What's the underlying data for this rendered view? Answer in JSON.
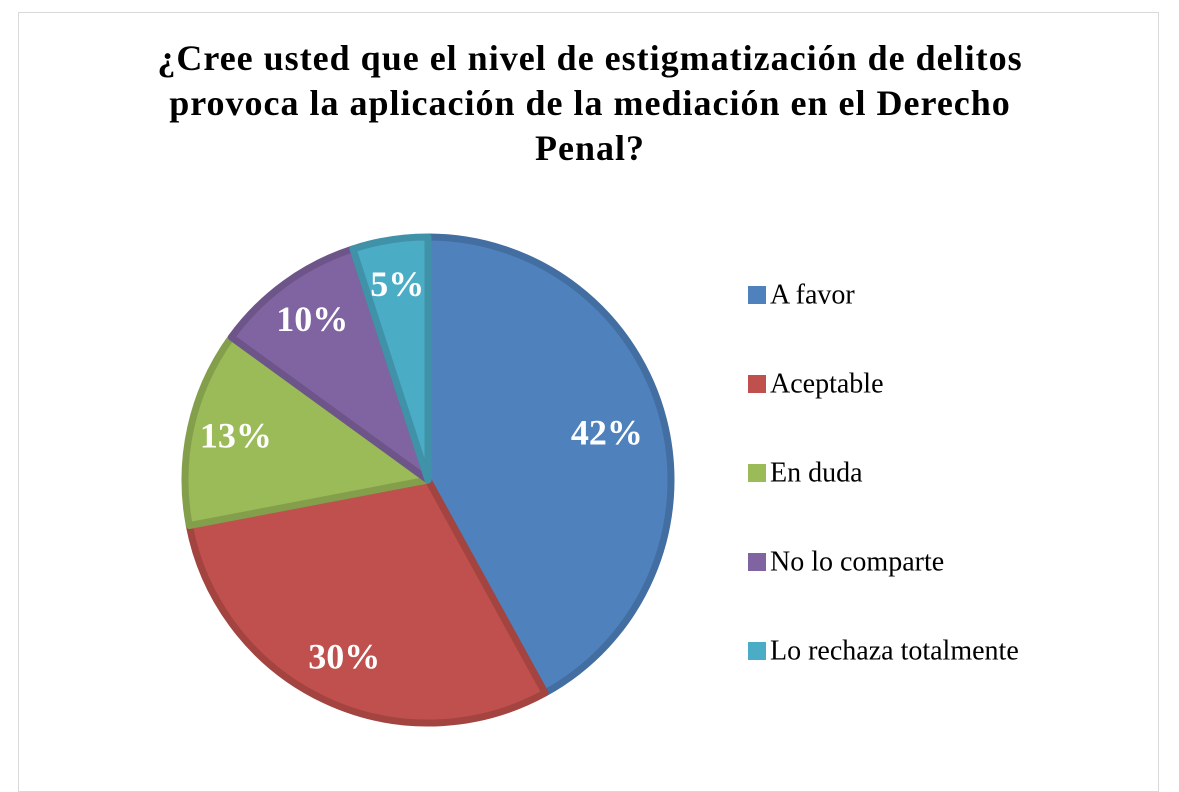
{
  "chart_data": {
    "type": "pie",
    "title": "¿Cree usted que el nivel de estigmatización de delitos provoca la aplicación de la mediación en el Derecho Penal?",
    "categories": [
      "A favor",
      "Aceptable",
      "En duda",
      "No lo comparte",
      "Lo rechaza totalmente"
    ],
    "values": [
      42,
      30,
      13,
      10,
      5
    ],
    "value_labels": [
      "42%",
      "30%",
      "13%",
      "10%",
      "5%"
    ],
    "colors": [
      "#4f81bd",
      "#c0504d",
      "#9bbb59",
      "#8064a2",
      "#4bacc6"
    ],
    "legend": "right"
  }
}
